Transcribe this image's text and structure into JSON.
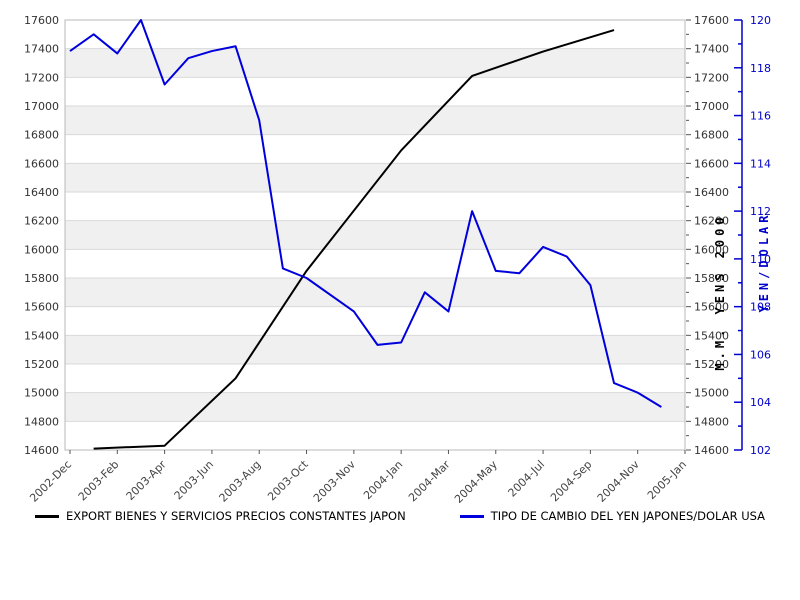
{
  "chart_data": {
    "type": "line",
    "title": "",
    "grid": "horizontal-bands",
    "legend_position": "bottom",
    "x_ticks": {
      "labels": [
        "2002-Dec",
        "2003-Feb",
        "2003-Apr",
        "2003-Jun",
        "2003-Aug",
        "2003-Oct",
        "2003-Nov",
        "2004-Jan",
        "2004-Mar",
        "2004-May",
        "2004-Jul",
        "2004-Sep",
        "2004-Nov",
        "2005-Jan"
      ],
      "month_index": [
        0,
        2,
        4,
        6,
        8,
        10,
        11,
        13,
        15,
        17,
        19,
        21,
        23,
        25
      ]
    },
    "left_axis": {
      "label": "",
      "min": 14600,
      "max": 17600,
      "step": 200
    },
    "right_axis_black": {
      "label": "M.M. YENS 2000",
      "min": 14600,
      "max": 17600,
      "step": 200,
      "minor_step": 100
    },
    "right_axis_blue": {
      "label": "YEN/DOLAR",
      "min": 102,
      "max": 120,
      "step": 2,
      "minor_step": 1
    },
    "series": [
      {
        "name": "EXPORT BIENES Y SERVICIOS PRECIOS CONSTANTES JAPON",
        "axis": "left",
        "color": "#000000",
        "months": [
          "2003-Jan",
          "2003-Apr",
          "2003-Jul",
          "2003-Oct",
          "2004-Jan",
          "2004-Apr",
          "2004-Jul",
          "2004-Oct"
        ],
        "month_index": [
          1,
          4,
          7,
          10,
          13,
          16,
          19,
          22
        ],
        "values": [
          14610,
          14630,
          15100,
          15850,
          16690,
          17210,
          17380,
          17530
        ]
      },
      {
        "name": "TIPO DE CAMBIO DEL YEN JAPONES/DOLAR USA",
        "axis": "right_blue",
        "color": "#0000dd",
        "months": [
          "2002-Dec",
          "2003-Jan",
          "2003-Feb",
          "2003-Mar",
          "2003-Apr",
          "2003-May",
          "2003-Jun",
          "2003-Jul",
          "2003-Aug",
          "2003-Sep",
          "2003-Oct",
          "2003-Nov",
          "2003-Dec",
          "2004-Jan",
          "2004-Feb",
          "2004-Mar",
          "2004-Apr",
          "2004-May",
          "2004-Jun",
          "2004-Jul",
          "2004-Aug",
          "2004-Sep",
          "2004-Oct",
          "2004-Nov",
          "2004-Dec"
        ],
        "month_index": [
          0,
          1,
          2,
          3,
          4,
          5,
          6,
          7,
          8,
          9,
          10,
          11,
          12,
          13,
          14,
          15,
          16,
          17,
          18,
          19,
          20,
          21,
          22,
          23,
          24
        ],
        "values": [
          118.7,
          119.4,
          118.6,
          120.0,
          117.3,
          118.4,
          118.7,
          118.9,
          115.8,
          109.6,
          109.2,
          107.8,
          106.4,
          106.5,
          108.6,
          107.8,
          112.0,
          109.5,
          109.4,
          110.5,
          110.1,
          108.9,
          104.8,
          104.4,
          103.8
        ]
      }
    ]
  },
  "colors": {
    "band_gray": "#f0f0f0",
    "grid_line": "#d9d9d9",
    "plot_border": "#b8b8b8",
    "tick_text": "#333333",
    "x_tick_text": "#444444",
    "blue_axis": "#0000cc",
    "black_line": "#000000",
    "blue_line": "#0000dd"
  }
}
